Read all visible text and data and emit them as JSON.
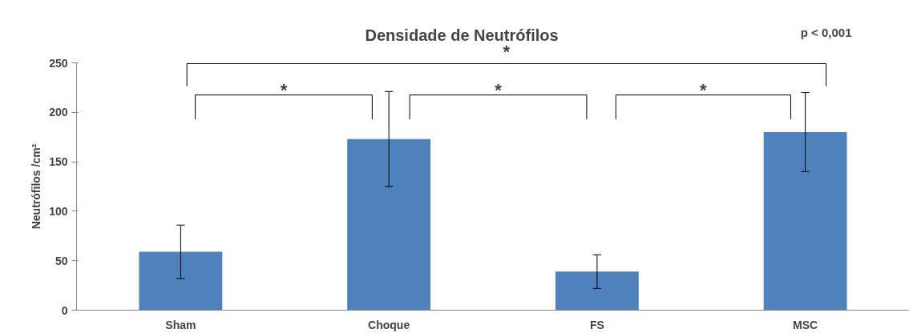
{
  "chart_data": {
    "type": "bar",
    "title": "Densidade de Neutrófilos",
    "ylabel": "Neutrófilos /cm²",
    "categories": [
      "Sham",
      "Choque",
      "FS",
      "MSC"
    ],
    "values": [
      59,
      173,
      39,
      180
    ],
    "errors": [
      27,
      48,
      17,
      40
    ],
    "color": "#4f81bd",
    "ylim": [
      0,
      250
    ],
    "yticks": [
      0,
      50,
      100,
      150,
      200,
      250
    ],
    "grid": false,
    "annotations": [
      "p < 0,001",
      "*",
      "*",
      "*",
      "*"
    ]
  }
}
